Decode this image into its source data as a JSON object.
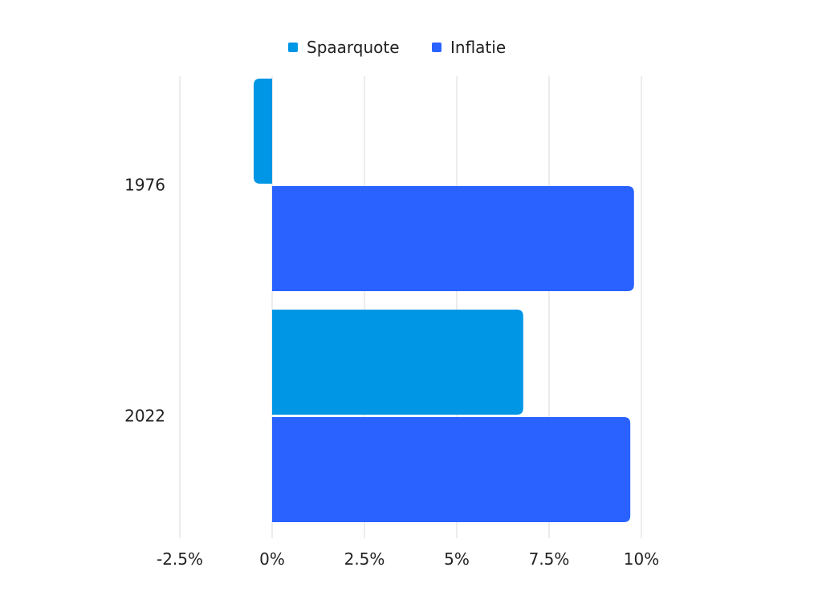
{
  "chart_data": {
    "type": "bar",
    "orientation": "horizontal",
    "categories": [
      "1976",
      "2022"
    ],
    "series": [
      {
        "name": "Spaarquote",
        "values": [
          -0.5,
          6.8
        ],
        "color": "#0096E6"
      },
      {
        "name": "Inflatie",
        "values": [
          9.8,
          9.7
        ],
        "color": "#2962FF"
      }
    ],
    "x_ticks": [
      "-2.5%",
      "0%",
      "2.5%",
      "5%",
      "7.5%",
      "10%"
    ],
    "x_tick_values": [
      -2.5,
      0,
      2.5,
      5,
      7.5,
      10
    ],
    "xlim": [
      -2.5,
      10
    ],
    "title": "",
    "xlabel": "",
    "ylabel": "",
    "grid": "vertical",
    "legend_position": "top-center"
  }
}
